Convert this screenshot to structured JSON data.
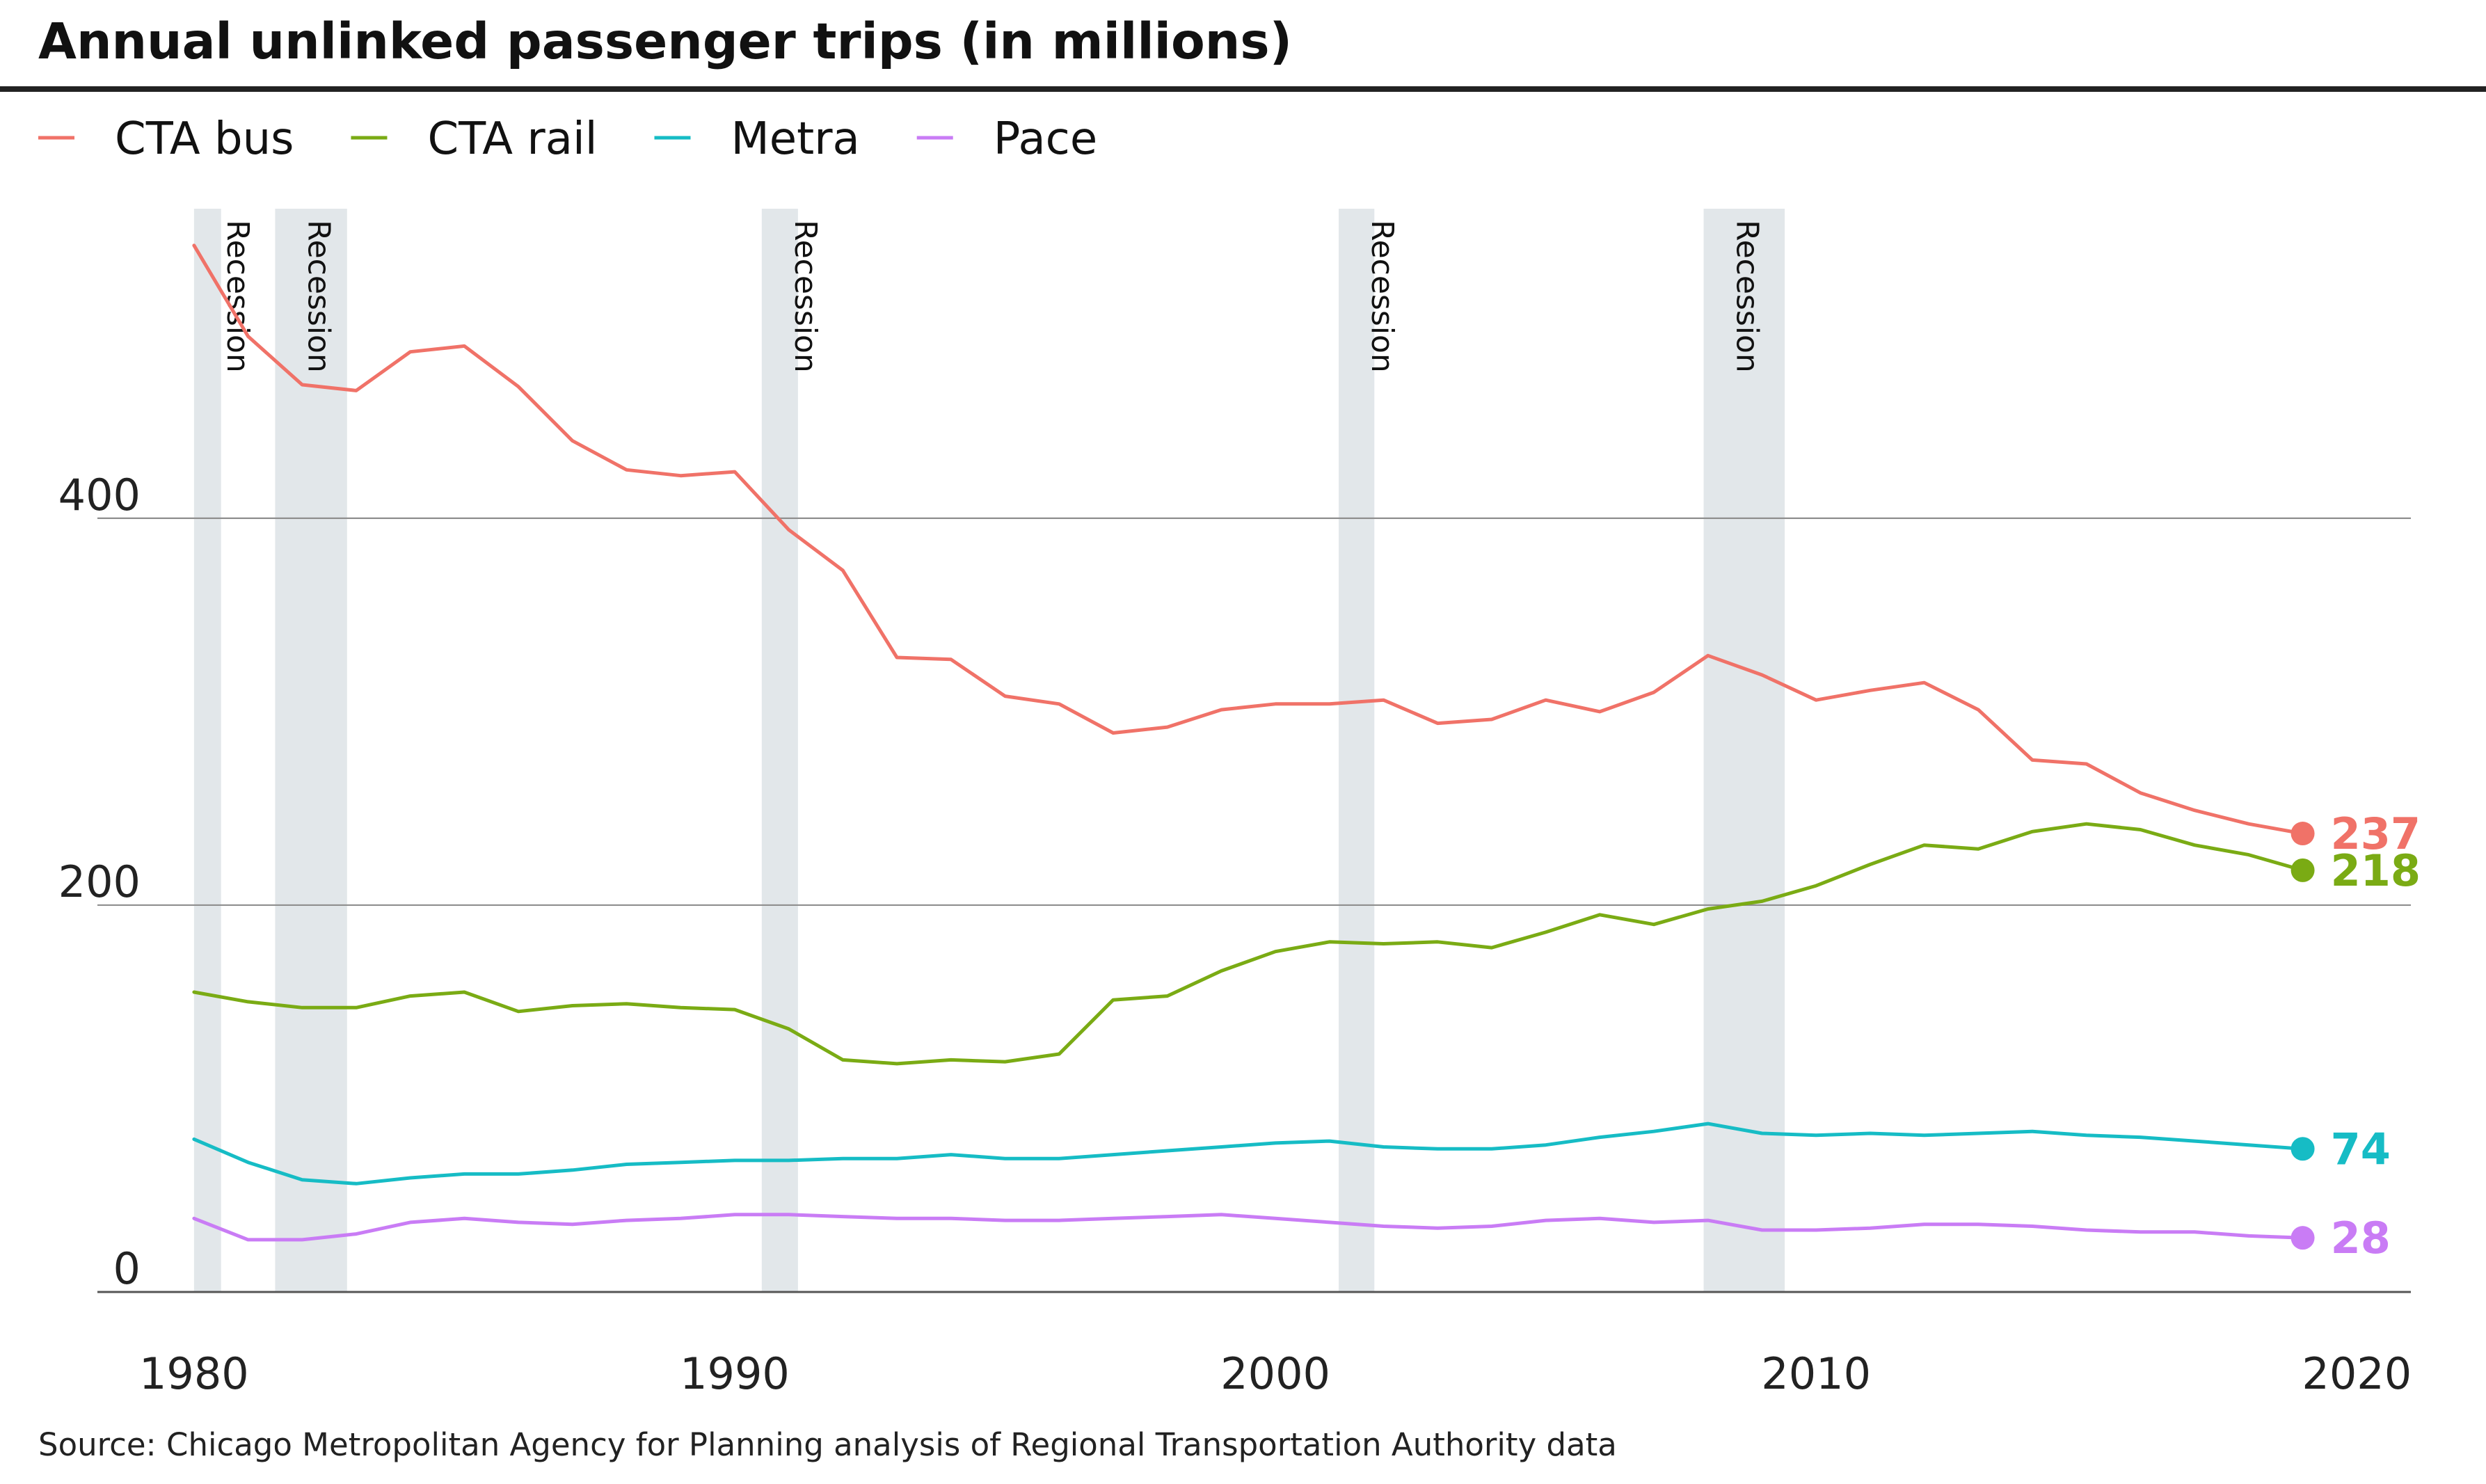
{
  "chart_data": {
    "type": "line",
    "title": "Annual unlinked passenger trips (in millions)",
    "source": "Source: Chicago Metropolitan Agency for Planning analysis of Regional Transportation Authority data",
    "xlabel": "",
    "ylabel": "",
    "xlim": [
      1979.5,
      2021
    ],
    "ylim": [
      0,
      560
    ],
    "x_ticks": [
      1980,
      1990,
      2000,
      2010,
      2020
    ],
    "y_ticks": [
      0,
      200,
      400
    ],
    "grid": "horizontal",
    "legend_position": "top-left",
    "recession_label": "Recession",
    "recessions": [
      {
        "start": 1980.0,
        "end": 1980.5
      },
      {
        "start": 1981.5,
        "end": 1982.83
      },
      {
        "start": 1990.5,
        "end": 1991.17
      },
      {
        "start": 2001.17,
        "end": 2001.83
      },
      {
        "start": 2007.92,
        "end": 2009.42
      }
    ],
    "x": [
      1980,
      1981,
      1982,
      1983,
      1984,
      1985,
      1986,
      1987,
      1988,
      1989,
      1990,
      1991,
      1992,
      1993,
      1994,
      1995,
      1996,
      1997,
      1998,
      1999,
      2000,
      2001,
      2002,
      2003,
      2004,
      2005,
      2006,
      2007,
      2008,
      2009,
      2010,
      2011,
      2012,
      2013,
      2014,
      2015,
      2016,
      2017,
      2018,
      2019
    ],
    "series": [
      {
        "name": "CTA bus",
        "color": "#f07268",
        "end_label": "237",
        "values": [
          541,
          494,
          469,
          466,
          486,
          489,
          468,
          440,
          425,
          422,
          424,
          394,
          373,
          328,
          327,
          308,
          304,
          289,
          292,
          301,
          304,
          304,
          306,
          294,
          296,
          306,
          300,
          310,
          329,
          319,
          306,
          311,
          315,
          301,
          275,
          273,
          258,
          249,
          242,
          237
        ]
      },
      {
        "name": "CTA rail",
        "color": "#7aab14",
        "end_label": "218",
        "values": [
          155,
          150,
          147,
          147,
          153,
          155,
          145,
          148,
          149,
          147,
          146,
          136,
          120,
          118,
          120,
          119,
          123,
          151,
          153,
          166,
          176,
          181,
          180,
          181,
          178,
          186,
          195,
          190,
          198,
          202,
          210,
          221,
          231,
          229,
          238,
          242,
          239,
          231,
          226,
          218
        ]
      },
      {
        "name": "Metra",
        "color": "#16bcc5",
        "end_label": "74",
        "values": [
          79,
          67,
          58,
          56,
          59,
          61,
          61,
          63,
          66,
          67,
          68,
          68,
          69,
          69,
          71,
          69,
          69,
          71,
          73,
          75,
          77,
          78,
          75,
          74,
          74,
          76,
          80,
          83,
          87,
          82,
          81,
          82,
          81,
          82,
          83,
          81,
          80,
          78,
          76,
          74
        ]
      },
      {
        "name": "Pace",
        "color": "#c97cf5",
        "end_label": "28",
        "values": [
          38,
          27,
          27,
          30,
          36,
          38,
          36,
          35,
          37,
          38,
          40,
          40,
          39,
          38,
          38,
          37,
          37,
          38,
          39,
          40,
          38,
          36,
          34,
          33,
          34,
          37,
          38,
          36,
          37,
          32,
          32,
          33,
          35,
          35,
          34,
          32,
          31,
          31,
          29,
          28
        ]
      }
    ]
  }
}
